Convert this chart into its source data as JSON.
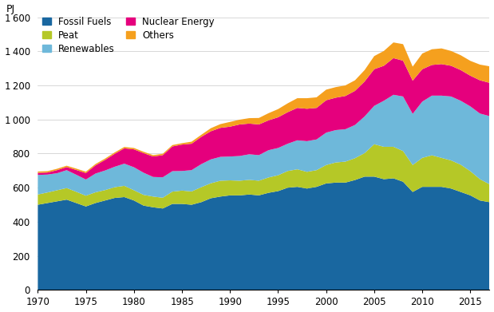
{
  "years": [
    1970,
    1971,
    1972,
    1973,
    1974,
    1975,
    1976,
    1977,
    1978,
    1979,
    1980,
    1981,
    1982,
    1983,
    1984,
    1985,
    1986,
    1987,
    1988,
    1989,
    1990,
    1991,
    1992,
    1993,
    1994,
    1995,
    1996,
    1997,
    1998,
    1999,
    2000,
    2001,
    2002,
    2003,
    2004,
    2005,
    2006,
    2007,
    2008,
    2009,
    2010,
    2011,
    2012,
    2013,
    2014,
    2015,
    2016,
    2017
  ],
  "fossil_fuels": [
    500,
    510,
    520,
    530,
    510,
    490,
    510,
    525,
    540,
    545,
    525,
    495,
    485,
    478,
    505,
    505,
    500,
    515,
    538,
    548,
    555,
    555,
    560,
    555,
    570,
    580,
    600,
    605,
    595,
    605,
    625,
    630,
    630,
    645,
    665,
    665,
    650,
    655,
    635,
    575,
    605,
    605,
    605,
    595,
    575,
    555,
    525,
    515
  ],
  "peat": [
    60,
    62,
    65,
    68,
    66,
    63,
    63,
    61,
    63,
    66,
    60,
    63,
    63,
    63,
    72,
    78,
    78,
    88,
    88,
    93,
    88,
    86,
    86,
    86,
    90,
    93,
    98,
    103,
    98,
    98,
    108,
    118,
    123,
    128,
    138,
    190,
    190,
    185,
    180,
    158,
    170,
    185,
    170,
    165,
    160,
    142,
    125,
    105
  ],
  "renewables": [
    115,
    105,
    100,
    105,
    100,
    95,
    110,
    115,
    120,
    130,
    135,
    130,
    115,
    120,
    120,
    115,
    125,
    135,
    140,
    140,
    140,
    145,
    150,
    150,
    160,
    160,
    160,
    170,
    180,
    180,
    190,
    190,
    190,
    195,
    215,
    225,
    270,
    305,
    320,
    300,
    330,
    350,
    365,
    375,
    375,
    380,
    385,
    400
  ],
  "nuclear": [
    12,
    12,
    18,
    18,
    28,
    38,
    48,
    62,
    76,
    90,
    105,
    115,
    120,
    130,
    145,
    155,
    155,
    160,
    165,
    170,
    175,
    185,
    180,
    180,
    175,
    180,
    185,
    190,
    190,
    185,
    190,
    190,
    195,
    200,
    205,
    215,
    205,
    215,
    210,
    195,
    190,
    180,
    185,
    180,
    180,
    180,
    195,
    195
  ],
  "others": [
    8,
    8,
    8,
    8,
    8,
    8,
    8,
    8,
    8,
    8,
    8,
    8,
    8,
    8,
    8,
    8,
    12,
    12,
    18,
    22,
    28,
    28,
    32,
    38,
    42,
    48,
    52,
    57,
    62,
    62,
    62,
    62,
    62,
    62,
    67,
    77,
    87,
    92,
    97,
    82,
    92,
    92,
    92,
    87,
    87,
    87,
    92,
    97
  ],
  "colors": {
    "fossil_fuels": "#1967a0",
    "peat": "#b5c827",
    "renewables": "#6eb8da",
    "nuclear": "#e5007d",
    "others": "#f5a01e"
  },
  "ylim": [
    0,
    1600
  ],
  "yticks": [
    0,
    200,
    400,
    600,
    800,
    1000,
    1200,
    1400,
    1600
  ],
  "ylabel": "PJ",
  "xticks": [
    1970,
    1975,
    1980,
    1985,
    1990,
    1995,
    2000,
    2005,
    2010,
    2015
  ],
  "background_color": "#ffffff",
  "grid_color": "#c8c8c8",
  "legend_order": [
    "Fossil Fuels",
    "Peat",
    "Renewables",
    "Nuclear Energy",
    "Others"
  ],
  "legend_colors": [
    "#1967a0",
    "#b5c827",
    "#6eb8da",
    "#e5007d",
    "#f5a01e"
  ]
}
